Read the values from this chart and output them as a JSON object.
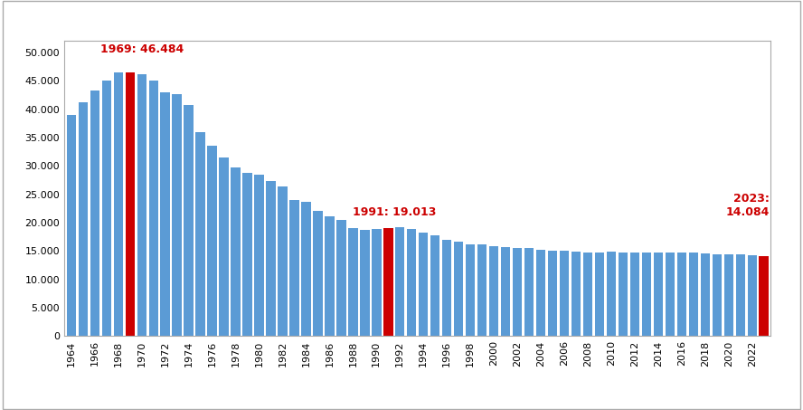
{
  "years": [
    1964,
    1965,
    1966,
    1967,
    1968,
    1969,
    1970,
    1971,
    1972,
    1973,
    1974,
    1975,
    1976,
    1977,
    1978,
    1979,
    1980,
    1981,
    1982,
    1983,
    1984,
    1985,
    1986,
    1987,
    1988,
    1989,
    1990,
    1991,
    1992,
    1993,
    1994,
    1995,
    1996,
    1997,
    1998,
    1999,
    2000,
    2001,
    2002,
    2003,
    2004,
    2005,
    2006,
    2007,
    2008,
    2009,
    2010,
    2011,
    2012,
    2013,
    2014,
    2015,
    2016,
    2017,
    2018,
    2019,
    2020,
    2021,
    2022,
    2023
  ],
  "values": [
    39000,
    41200,
    43300,
    45100,
    46400,
    46484,
    46100,
    45000,
    42900,
    42700,
    40700,
    36000,
    33500,
    31500,
    29800,
    28700,
    28500,
    27400,
    26300,
    24000,
    23600,
    22000,
    21100,
    20500,
    19000,
    18700,
    18900,
    19013,
    19200,
    18900,
    18300,
    17800,
    17000,
    16700,
    16200,
    16200,
    15900,
    15700,
    15600,
    15500,
    15200,
    15100,
    15000,
    14900,
    14800,
    14800,
    14900,
    14800,
    14800,
    14800,
    14800,
    14800,
    14800,
    14800,
    14600,
    14500,
    14500,
    14400,
    14200,
    14084
  ],
  "highlight_years": [
    1969,
    1991,
    2023
  ],
  "highlight_color": "#cc0000",
  "bar_color": "#5b9bd5",
  "ylim": [
    0,
    52000
  ],
  "yticks": [
    0,
    5000,
    10000,
    15000,
    20000,
    25000,
    30000,
    35000,
    40000,
    45000,
    50000
  ],
  "ytick_labels": [
    "0",
    "5.000",
    "10.000",
    "15.000",
    "20.000",
    "25.000",
    "30.000",
    "35.000",
    "40.000",
    "45.000",
    "50.000"
  ],
  "background_color": "#ffffff",
  "annotation_color": "#cc0000",
  "annotation_fontsize": 9,
  "bar_width": 0.8,
  "ann_1969_text": "1969: 46.484",
  "ann_1991_text": "1991: 19.013",
  "ann_2023_text": "2023:\n14.084"
}
